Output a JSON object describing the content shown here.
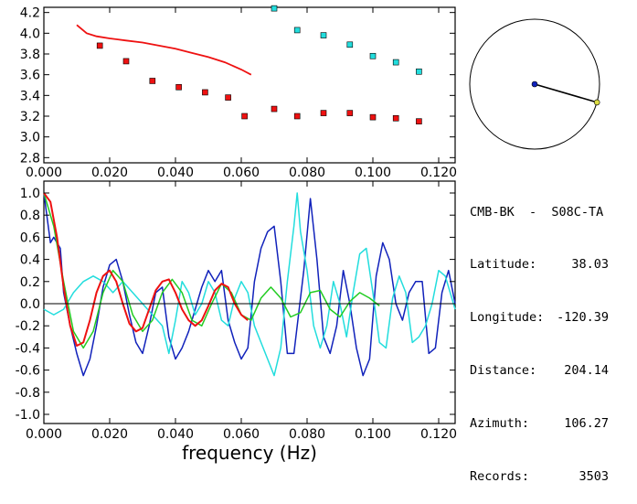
{
  "station": {
    "title": "CMB-BK  -  S08C-TA",
    "fields": [
      {
        "label": "Latitude:",
        "value": "38.03"
      },
      {
        "label": "Longitude:",
        "value": "-120.39"
      },
      {
        "label": "Distance:",
        "value": "204.14"
      },
      {
        "label": "Azimuth:",
        "value": "106.27"
      },
      {
        "label": "Records:",
        "value": "3503"
      }
    ]
  },
  "colors": {
    "red": "#ee1111",
    "cyan": "#22dddd",
    "blue": "#1122bb",
    "green": "#22cc22",
    "black": "#000000"
  },
  "chart_data": [
    {
      "type": "scatter",
      "title": "",
      "xlabel": "",
      "ylabel": "",
      "xlim": [
        0.0,
        0.125
      ],
      "ylim": [
        2.75,
        4.25
      ],
      "x_ticks": [
        "0.000",
        "0.020",
        "0.040",
        "0.060",
        "0.080",
        "0.100",
        "0.120"
      ],
      "y_ticks": [
        "2.8",
        "3.0",
        "3.2",
        "3.4",
        "3.6",
        "3.8",
        "4.0",
        "4.2"
      ],
      "series": [
        {
          "color": "red",
          "marker": "square",
          "x": [
            0.017,
            0.025,
            0.033,
            0.041,
            0.049,
            0.056,
            0.061,
            0.07,
            0.077,
            0.085,
            0.093,
            0.1,
            0.107,
            0.114
          ],
          "y": [
            3.88,
            3.73,
            3.54,
            3.48,
            3.43,
            3.38,
            3.2,
            3.27,
            3.2,
            3.23,
            3.23,
            3.19,
            3.18,
            3.15
          ]
        },
        {
          "color": "cyan",
          "marker": "square",
          "x": [
            0.07,
            0.077,
            0.085,
            0.093,
            0.1,
            0.107,
            0.114
          ],
          "y": [
            4.24,
            4.03,
            3.98,
            3.89,
            3.78,
            3.72,
            3.63
          ]
        },
        {
          "color": "red",
          "marker": "line",
          "x": [
            0.01,
            0.013,
            0.016,
            0.02,
            0.025,
            0.03,
            0.035,
            0.04,
            0.045,
            0.05,
            0.055,
            0.06,
            0.063
          ],
          "y": [
            4.08,
            4.0,
            3.97,
            3.95,
            3.93,
            3.91,
            3.88,
            3.85,
            3.81,
            3.77,
            3.72,
            3.65,
            3.6
          ]
        }
      ]
    },
    {
      "type": "line",
      "title": "",
      "xlabel": "frequency (Hz)",
      "ylabel": "",
      "xlim": [
        0.0,
        0.125
      ],
      "ylim": [
        -1.1,
        1.05
      ],
      "x_ticks": [
        "0.000",
        "0.020",
        "0.040",
        "0.060",
        "0.080",
        "0.100",
        "0.120"
      ],
      "y_ticks": [
        "1.0",
        "0.8",
        "0.6",
        "0.4",
        "0.2",
        "0.0",
        "-0.2",
        "-0.4",
        "-0.6",
        "-0.8",
        "-1.0"
      ],
      "series": [
        {
          "color": "blue",
          "x": [
            0.0,
            0.002,
            0.003,
            0.005,
            0.006,
            0.008,
            0.01,
            0.012,
            0.014,
            0.016,
            0.018,
            0.02,
            0.022,
            0.024,
            0.026,
            0.028,
            0.03,
            0.032,
            0.034,
            0.036,
            0.038,
            0.04,
            0.042,
            0.044,
            0.046,
            0.048,
            0.05,
            0.052,
            0.054,
            0.056,
            0.058,
            0.06,
            0.062,
            0.064,
            0.066,
            0.068,
            0.07,
            0.072,
            0.074,
            0.076,
            0.077,
            0.079,
            0.081,
            0.083,
            0.085,
            0.087,
            0.089,
            0.091,
            0.093,
            0.095,
            0.097,
            0.099,
            0.101,
            0.103,
            0.105,
            0.107,
            0.109,
            0.111,
            0.113,
            0.115,
            0.117,
            0.119,
            0.121,
            0.123,
            0.125
          ],
          "y": [
            1.0,
            0.55,
            0.6,
            0.5,
            0.1,
            -0.2,
            -0.45,
            -0.65,
            -0.5,
            -0.2,
            0.15,
            0.35,
            0.4,
            0.2,
            -0.1,
            -0.35,
            -0.45,
            -0.2,
            0.1,
            0.15,
            -0.3,
            -0.5,
            -0.4,
            -0.25,
            -0.05,
            0.15,
            0.3,
            0.2,
            0.3,
            -0.15,
            -0.35,
            -0.5,
            -0.4,
            0.2,
            0.5,
            0.65,
            0.7,
            0.2,
            -0.45,
            -0.45,
            -0.2,
            0.3,
            0.95,
            0.4,
            -0.3,
            -0.45,
            -0.2,
            0.3,
            0.0,
            -0.4,
            -0.65,
            -0.5,
            0.25,
            0.55,
            0.4,
            0.0,
            -0.15,
            0.1,
            0.2,
            0.2,
            -0.45,
            -0.4,
            0.1,
            0.3,
            0.0
          ]
        },
        {
          "color": "cyan",
          "x": [
            0.0,
            0.003,
            0.006,
            0.009,
            0.012,
            0.015,
            0.018,
            0.021,
            0.024,
            0.027,
            0.03,
            0.033,
            0.036,
            0.038,
            0.04,
            0.042,
            0.044,
            0.046,
            0.048,
            0.05,
            0.052,
            0.054,
            0.056,
            0.058,
            0.06,
            0.062,
            0.064,
            0.066,
            0.068,
            0.07,
            0.072,
            0.074,
            0.076,
            0.077,
            0.078,
            0.08,
            0.082,
            0.084,
            0.086,
            0.088,
            0.09,
            0.092,
            0.094,
            0.096,
            0.098,
            0.1,
            0.102,
            0.104,
            0.106,
            0.108,
            0.11,
            0.112,
            0.114,
            0.116,
            0.118,
            0.12,
            0.122,
            0.125
          ],
          "y": [
            -0.05,
            -0.1,
            -0.05,
            0.1,
            0.2,
            0.25,
            0.2,
            0.1,
            0.2,
            0.1,
            0.0,
            -0.1,
            -0.2,
            -0.45,
            -0.15,
            0.2,
            0.1,
            -0.1,
            0.0,
            0.2,
            0.1,
            -0.15,
            -0.2,
            0.05,
            0.2,
            0.1,
            -0.2,
            -0.35,
            -0.5,
            -0.65,
            -0.4,
            0.2,
            0.7,
            1.0,
            0.65,
            0.3,
            -0.2,
            -0.4,
            -0.2,
            0.2,
            0.0,
            -0.3,
            0.1,
            0.45,
            0.5,
            0.1,
            -0.35,
            -0.4,
            0.05,
            0.25,
            0.1,
            -0.35,
            -0.3,
            -0.2,
            0.0,
            0.3,
            0.25,
            -0.05
          ]
        },
        {
          "color": "green",
          "x": [
            0.0,
            0.003,
            0.006,
            0.009,
            0.012,
            0.015,
            0.018,
            0.021,
            0.024,
            0.027,
            0.03,
            0.033,
            0.036,
            0.039,
            0.042,
            0.045,
            0.048,
            0.051,
            0.054,
            0.057,
            0.06,
            0.063,
            0.066,
            0.069,
            0.072,
            0.075,
            0.078,
            0.081,
            0.084,
            0.087,
            0.09,
            0.093,
            0.096,
            0.099,
            0.102
          ],
          "y": [
            1.0,
            0.7,
            0.2,
            -0.25,
            -0.4,
            -0.25,
            0.1,
            0.3,
            0.2,
            -0.1,
            -0.25,
            -0.15,
            0.1,
            0.22,
            0.1,
            -0.15,
            -0.2,
            0.0,
            0.18,
            0.1,
            -0.1,
            -0.15,
            0.05,
            0.15,
            0.05,
            -0.12,
            -0.08,
            0.1,
            0.12,
            -0.05,
            -0.12,
            0.02,
            0.1,
            0.05,
            -0.02
          ]
        },
        {
          "color": "red",
          "x": [
            0.0,
            0.002,
            0.004,
            0.006,
            0.008,
            0.01,
            0.012,
            0.014,
            0.016,
            0.018,
            0.02,
            0.022,
            0.024,
            0.026,
            0.028,
            0.03,
            0.032,
            0.034,
            0.036,
            0.038,
            0.04,
            0.042,
            0.044,
            0.046,
            0.048,
            0.05,
            0.052,
            0.054,
            0.056,
            0.058,
            0.06,
            0.062
          ],
          "y": [
            1.0,
            0.92,
            0.6,
            0.15,
            -0.2,
            -0.38,
            -0.35,
            -0.15,
            0.1,
            0.25,
            0.3,
            0.2,
            0.0,
            -0.18,
            -0.25,
            -0.22,
            -0.05,
            0.12,
            0.2,
            0.22,
            0.1,
            -0.05,
            -0.15,
            -0.2,
            -0.15,
            -0.02,
            0.12,
            0.18,
            0.15,
            0.0,
            -0.1,
            -0.15
          ]
        }
      ]
    }
  ],
  "azimuth_dial": {
    "azimuth_deg": 106.27
  }
}
